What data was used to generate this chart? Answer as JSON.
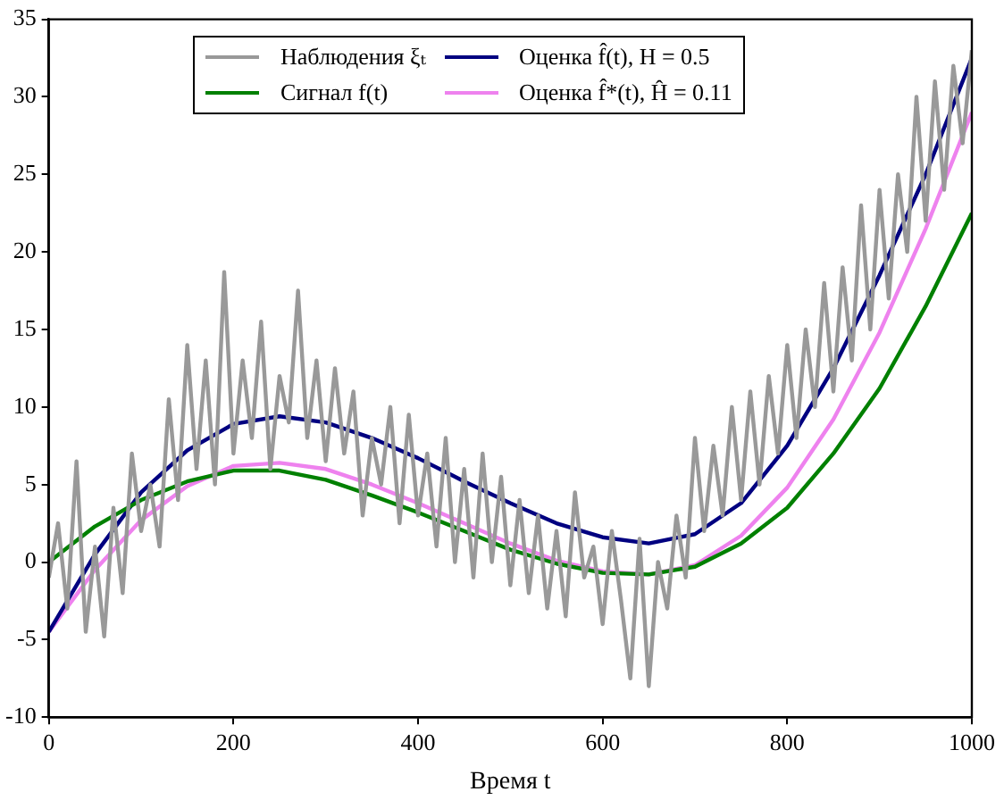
{
  "chart_data": {
    "type": "line",
    "xlabel": "Время t",
    "xlim": [
      0,
      1000
    ],
    "xticks": [
      0,
      200,
      400,
      600,
      800,
      1000
    ],
    "ylim": [
      -10,
      35
    ],
    "yticks": [
      -10,
      -5,
      0,
      5,
      10,
      15,
      20,
      25,
      30,
      35
    ],
    "grid": false,
    "legend": "top",
    "marker": "none",
    "line_style": "solid",
    "series": [
      {
        "name": "Наблюдения ξₜ",
        "color": "#999999",
        "x": [
          0,
          10,
          20,
          30,
          40,
          50,
          60,
          70,
          80,
          90,
          100,
          110,
          120,
          130,
          140,
          150,
          160,
          170,
          180,
          190,
          200,
          210,
          220,
          230,
          240,
          250,
          260,
          270,
          280,
          290,
          300,
          310,
          320,
          330,
          340,
          350,
          360,
          370,
          380,
          390,
          400,
          410,
          420,
          430,
          440,
          450,
          460,
          470,
          480,
          490,
          500,
          510,
          520,
          530,
          540,
          550,
          560,
          570,
          580,
          590,
          600,
          610,
          620,
          630,
          640,
          650,
          660,
          670,
          680,
          690,
          700,
          710,
          720,
          730,
          740,
          750,
          760,
          770,
          780,
          790,
          800,
          810,
          820,
          830,
          840,
          850,
          860,
          870,
          880,
          890,
          900,
          910,
          920,
          930,
          940,
          950,
          960,
          970,
          980,
          990,
          1000
        ],
        "values": [
          -1,
          2.5,
          -3,
          6.5,
          -4.5,
          1,
          -4.8,
          3.5,
          -2,
          7,
          2,
          5,
          1,
          10.5,
          4,
          14,
          6,
          13,
          5,
          18.7,
          7,
          13,
          8,
          15.5,
          6,
          12,
          9,
          17.5,
          8,
          13,
          6.5,
          12.5,
          7,
          11,
          3,
          8,
          5,
          10,
          2.5,
          9.5,
          3,
          7,
          1,
          8,
          0,
          6,
          -1,
          7,
          0,
          5.5,
          -1.5,
          4,
          -2,
          3,
          -3,
          2,
          -3.5,
          4.5,
          -1,
          1,
          -4,
          2,
          -2.5,
          -7.5,
          1.5,
          -8,
          0,
          -3,
          3,
          -1,
          8,
          2,
          7.5,
          3,
          10,
          4,
          11,
          5,
          12,
          7,
          14,
          8,
          15,
          10,
          18,
          11,
          19,
          13,
          23,
          15,
          24,
          17,
          25,
          20,
          30,
          22,
          31,
          24,
          32,
          27,
          33
        ]
      },
      {
        "name": "Сигнал f(t)",
        "color": "#008000",
        "x": [
          0,
          50,
          100,
          150,
          200,
          250,
          300,
          350,
          400,
          450,
          500,
          550,
          600,
          650,
          700,
          750,
          800,
          850,
          900,
          950,
          1000
        ],
        "values": [
          0,
          2.3,
          4.0,
          5.2,
          5.9,
          5.9,
          5.3,
          4.3,
          3.2,
          2.0,
          0.8,
          -0.1,
          -0.7,
          -0.8,
          -0.3,
          1.2,
          3.5,
          7.0,
          11.2,
          16.5,
          22.5
        ]
      },
      {
        "name": "Оценка f̂(t), H = 0.5",
        "color": "#000080",
        "x": [
          0,
          50,
          100,
          150,
          200,
          250,
          300,
          350,
          400,
          450,
          500,
          550,
          600,
          650,
          700,
          750,
          800,
          850,
          900,
          950,
          1000
        ],
        "values": [
          -4.5,
          0.5,
          4.5,
          7.2,
          8.9,
          9.4,
          9.0,
          8.0,
          6.7,
          5.2,
          3.8,
          2.5,
          1.6,
          1.2,
          1.8,
          3.8,
          7.5,
          12.5,
          18.5,
          25.0,
          32.5
        ]
      },
      {
        "name": "Оценка f̂*(t), Ĥ = 0.11",
        "color": "#ee82ee",
        "x": [
          0,
          50,
          100,
          150,
          200,
          250,
          300,
          350,
          400,
          450,
          500,
          550,
          600,
          650,
          700,
          750,
          800,
          850,
          900,
          950,
          1000
        ],
        "values": [
          -4.5,
          -0.5,
          2.7,
          4.9,
          6.2,
          6.4,
          6.0,
          5.0,
          3.8,
          2.5,
          1.2,
          0.1,
          -0.6,
          -0.8,
          -0.2,
          1.7,
          4.8,
          9.2,
          14.8,
          21.5,
          29.0
        ]
      }
    ]
  }
}
